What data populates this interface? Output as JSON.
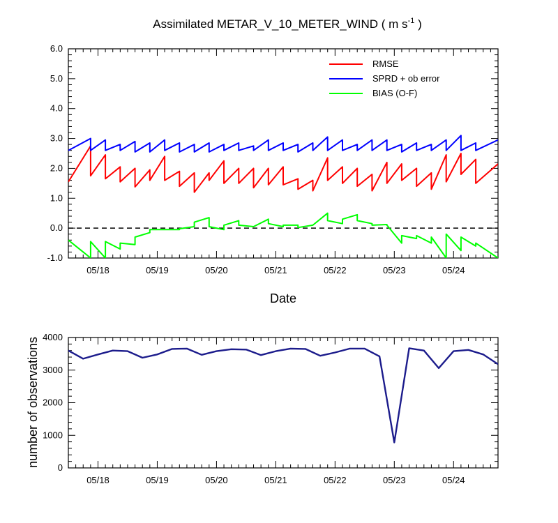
{
  "chart_data": [
    {
      "type": "line",
      "title": "Assimilated METAR_V_10_METER_WIND",
      "units": "m s",
      "units_exponent": "-1",
      "xlabel": "Date",
      "ylabel": "",
      "x_range": [
        0,
        7.25
      ],
      "ylim": [
        -1.0,
        6.0
      ],
      "y_ticks": [
        -1.0,
        0.0,
        1.0,
        2.0,
        3.0,
        4.0,
        5.0,
        6.0
      ],
      "y_tick_labels": [
        "-1.0",
        "0.0",
        "1.0",
        "2.0",
        "3.0",
        "4.0",
        "5.0",
        "6.0"
      ],
      "x_ticks": [
        0.5,
        1.5,
        2.5,
        3.5,
        4.5,
        5.5,
        6.5
      ],
      "x_tick_labels": [
        "05/18",
        "05/19",
        "05/20",
        "05/21",
        "05/22",
        "05/23",
        "05/24"
      ],
      "zero_line": true,
      "legend_position": "top-right",
      "series": [
        {
          "name": "RMSE",
          "color": "#ff0000",
          "values": [
            [
              0,
              1.55
            ],
            [
              0.375,
              2.75
            ],
            [
              0.375,
              1.75
            ],
            [
              0.625,
              2.45
            ],
            [
              0.625,
              1.65
            ],
            [
              0.875,
              2.05
            ],
            [
              0.875,
              1.55
            ],
            [
              1.125,
              2.0
            ],
            [
              1.125,
              1.38
            ],
            [
              1.375,
              1.95
            ],
            [
              1.375,
              1.6
            ],
            [
              1.625,
              2.4
            ],
            [
              1.625,
              1.6
            ],
            [
              1.875,
              1.9
            ],
            [
              1.875,
              1.4
            ],
            [
              2.125,
              1.85
            ],
            [
              2.125,
              1.2
            ],
            [
              2.375,
              1.85
            ],
            [
              2.375,
              1.6
            ],
            [
              2.625,
              2.25
            ],
            [
              2.625,
              1.5
            ],
            [
              2.875,
              2.0
            ],
            [
              2.875,
              1.5
            ],
            [
              3.125,
              2.0
            ],
            [
              3.125,
              1.35
            ],
            [
              3.375,
              2.0
            ],
            [
              3.375,
              1.45
            ],
            [
              3.625,
              2.05
            ],
            [
              3.625,
              1.45
            ],
            [
              3.875,
              1.65
            ],
            [
              3.875,
              1.3
            ],
            [
              4.125,
              1.6
            ],
            [
              4.125,
              1.25
            ],
            [
              4.375,
              2.35
            ],
            [
              4.375,
              1.6
            ],
            [
              4.625,
              2.05
            ],
            [
              4.625,
              1.5
            ],
            [
              4.875,
              2.0
            ],
            [
              4.875,
              1.4
            ],
            [
              5.125,
              1.8
            ],
            [
              5.125,
              1.25
            ],
            [
              5.375,
              2.2
            ],
            [
              5.375,
              1.5
            ],
            [
              5.625,
              2.15
            ],
            [
              5.625,
              1.6
            ],
            [
              5.875,
              2.0
            ],
            [
              5.875,
              1.4
            ],
            [
              6.125,
              1.85
            ],
            [
              6.125,
              1.3
            ],
            [
              6.375,
              2.45
            ],
            [
              6.375,
              1.55
            ],
            [
              6.625,
              2.5
            ],
            [
              6.625,
              1.8
            ],
            [
              6.875,
              2.3
            ],
            [
              6.875,
              1.5
            ],
            [
              7.25,
              2.15
            ]
          ]
        },
        {
          "name": "SPRD + ob error",
          "color": "#0000ff",
          "values": [
            [
              0,
              2.6
            ],
            [
              0.375,
              3.0
            ],
            [
              0.375,
              2.6
            ],
            [
              0.625,
              2.95
            ],
            [
              0.625,
              2.6
            ],
            [
              0.875,
              2.8
            ],
            [
              0.875,
              2.6
            ],
            [
              1.125,
              2.9
            ],
            [
              1.125,
              2.55
            ],
            [
              1.375,
              2.85
            ],
            [
              1.375,
              2.55
            ],
            [
              1.625,
              2.95
            ],
            [
              1.625,
              2.6
            ],
            [
              1.875,
              2.85
            ],
            [
              1.875,
              2.55
            ],
            [
              2.125,
              2.8
            ],
            [
              2.125,
              2.55
            ],
            [
              2.375,
              2.85
            ],
            [
              2.375,
              2.55
            ],
            [
              2.625,
              2.8
            ],
            [
              2.625,
              2.6
            ],
            [
              2.875,
              2.85
            ],
            [
              2.875,
              2.6
            ],
            [
              3.125,
              2.75
            ],
            [
              3.125,
              2.6
            ],
            [
              3.375,
              2.95
            ],
            [
              3.375,
              2.6
            ],
            [
              3.625,
              2.85
            ],
            [
              3.625,
              2.6
            ],
            [
              3.875,
              2.8
            ],
            [
              3.875,
              2.55
            ],
            [
              4.125,
              2.85
            ],
            [
              4.125,
              2.6
            ],
            [
              4.375,
              3.05
            ],
            [
              4.375,
              2.6
            ],
            [
              4.625,
              2.95
            ],
            [
              4.625,
              2.6
            ],
            [
              4.875,
              2.8
            ],
            [
              4.875,
              2.6
            ],
            [
              5.125,
              2.95
            ],
            [
              5.125,
              2.6
            ],
            [
              5.375,
              2.95
            ],
            [
              5.375,
              2.6
            ],
            [
              5.625,
              2.8
            ],
            [
              5.625,
              2.55
            ],
            [
              5.875,
              2.85
            ],
            [
              5.875,
              2.6
            ],
            [
              6.125,
              2.8
            ],
            [
              6.125,
              2.6
            ],
            [
              6.375,
              2.95
            ],
            [
              6.375,
              2.6
            ],
            [
              6.625,
              3.1
            ],
            [
              6.625,
              2.6
            ],
            [
              6.875,
              2.85
            ],
            [
              6.875,
              2.6
            ],
            [
              7.25,
              2.95
            ]
          ]
        },
        {
          "name": "BIAS (O-F)",
          "color": "#00ff00",
          "values": [
            [
              0,
              -0.4
            ],
            [
              0.375,
              -1.0
            ],
            [
              0.375,
              -0.45
            ],
            [
              0.625,
              -1.0
            ],
            [
              0.625,
              -0.45
            ],
            [
              0.875,
              -0.7
            ],
            [
              0.875,
              -0.5
            ],
            [
              1.125,
              -0.55
            ],
            [
              1.125,
              -0.3
            ],
            [
              1.375,
              -0.15
            ],
            [
              1.375,
              -0.05
            ],
            [
              1.625,
              -0.05
            ],
            [
              1.875,
              -0.05
            ],
            [
              1.875,
              -0.02
            ],
            [
              2.125,
              0.05
            ],
            [
              2.125,
              0.2
            ],
            [
              2.375,
              0.35
            ],
            [
              2.375,
              0.05
            ],
            [
              2.625,
              -0.05
            ],
            [
              2.625,
              0.1
            ],
            [
              2.875,
              0.25
            ],
            [
              2.875,
              0.1
            ],
            [
              3.125,
              0.05
            ],
            [
              3.125,
              0.05
            ],
            [
              3.375,
              0.3
            ],
            [
              3.375,
              0.15
            ],
            [
              3.625,
              0.05
            ],
            [
              3.625,
              0.1
            ],
            [
              3.875,
              0.1
            ],
            [
              3.875,
              0.02
            ],
            [
              4.125,
              0.1
            ],
            [
              4.125,
              0.1
            ],
            [
              4.375,
              0.5
            ],
            [
              4.375,
              0.25
            ],
            [
              4.625,
              0.15
            ],
            [
              4.625,
              0.3
            ],
            [
              4.875,
              0.45
            ],
            [
              4.875,
              0.25
            ],
            [
              5.125,
              0.15
            ],
            [
              5.125,
              0.1
            ],
            [
              5.375,
              0.12
            ],
            [
              5.375,
              0.1
            ],
            [
              5.625,
              -0.5
            ],
            [
              5.625,
              -0.25
            ],
            [
              5.875,
              -0.35
            ],
            [
              5.875,
              -0.25
            ],
            [
              6.125,
              -0.5
            ],
            [
              6.125,
              -0.3
            ],
            [
              6.375,
              -1.0
            ],
            [
              6.375,
              -0.2
            ],
            [
              6.625,
              -0.75
            ],
            [
              6.625,
              -0.3
            ],
            [
              6.875,
              -0.6
            ],
            [
              6.875,
              -0.5
            ],
            [
              7.25,
              -1.0
            ]
          ]
        }
      ]
    },
    {
      "type": "line",
      "title": "",
      "xlabel": "",
      "ylabel": "number of observations",
      "x_range": [
        0,
        7.25
      ],
      "ylim": [
        0,
        4000
      ],
      "y_ticks": [
        0,
        1000,
        2000,
        3000,
        4000
      ],
      "y_tick_labels": [
        "0",
        "1000",
        "2000",
        "3000",
        "4000"
      ],
      "x_ticks": [
        0.5,
        1.5,
        2.5,
        3.5,
        4.5,
        5.5,
        6.5
      ],
      "x_tick_labels": [
        "05/18",
        "05/19",
        "05/20",
        "05/21",
        "05/22",
        "05/23",
        "05/24"
      ],
      "series": [
        {
          "name": "observations",
          "color": "#1c1c8c",
          "values": [
            [
              0,
              3600
            ],
            [
              0.25,
              3350
            ],
            [
              0.5,
              3480
            ],
            [
              0.75,
              3600
            ],
            [
              1.0,
              3580
            ],
            [
              1.25,
              3380
            ],
            [
              1.5,
              3480
            ],
            [
              1.75,
              3650
            ],
            [
              2.0,
              3660
            ],
            [
              2.25,
              3470
            ],
            [
              2.5,
              3580
            ],
            [
              2.75,
              3640
            ],
            [
              3.0,
              3630
            ],
            [
              3.25,
              3460
            ],
            [
              3.5,
              3580
            ],
            [
              3.75,
              3660
            ],
            [
              4.0,
              3650
            ],
            [
              4.25,
              3440
            ],
            [
              4.5,
              3540
            ],
            [
              4.75,
              3660
            ],
            [
              5.0,
              3660
            ],
            [
              5.25,
              3420
            ],
            [
              5.5,
              780
            ],
            [
              5.75,
              3670
            ],
            [
              6.0,
              3600
            ],
            [
              6.25,
              3060
            ],
            [
              6.5,
              3580
            ],
            [
              6.75,
              3620
            ],
            [
              7.0,
              3480
            ],
            [
              7.25,
              3180
            ]
          ]
        }
      ]
    }
  ]
}
